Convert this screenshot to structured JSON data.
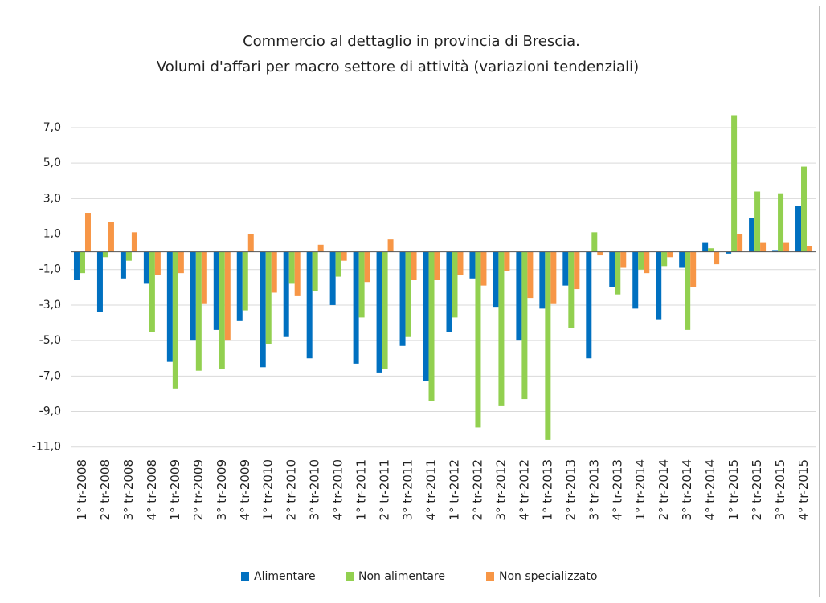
{
  "chart_data": {
    "type": "bar",
    "title": "Commercio al dettaglio in provincia di Brescia.",
    "subtitle": "Volumi d'affari  per macro settore di attività (variazioni tendenziali)",
    "categories": [
      "1° tr-2008",
      "2° tr-2008",
      "3° tr-2008",
      "4° tr-2008",
      "1° tr-2009",
      "2° tr-2009",
      "3° tr-2009",
      "4° tr-2009",
      "1° tr-2010",
      "2° tr-2010",
      "3° tr-2010",
      "4° tr-2010",
      "1° tr-2011",
      "2° tr-2011",
      "3° tr-2011",
      "4° tr-2011",
      "1° tr-2012",
      "2° tr-2012",
      "3° tr-2012",
      "4° tr-2012",
      "1° tr-2013",
      "2° tr-2013",
      "3° tr-2013",
      "4° tr-2013",
      "1° tr-2014",
      "2° tr-2014",
      "3° tr-2014",
      "4° tr-2014",
      "1° tr-2015",
      "2° tr-2015",
      "3° tr-2015",
      "4° tr-2015"
    ],
    "series": [
      {
        "name": "Alimentare",
        "color": "#0070c0",
        "values": [
          -1.6,
          -3.4,
          -1.5,
          -1.8,
          -6.2,
          -5.0,
          -4.4,
          -3.9,
          -6.5,
          -4.8,
          -6.0,
          -3.0,
          -6.3,
          -6.8,
          -5.3,
          -7.3,
          -4.5,
          -1.5,
          -3.1,
          -5.0,
          -3.2,
          -1.9,
          -6.0,
          -2.0,
          -3.2,
          -3.8,
          -0.9,
          0.5,
          -0.1,
          1.9,
          0.1,
          2.6
        ]
      },
      {
        "name": "Non alimentare",
        "color": "#92d050",
        "values": [
          -1.2,
          -0.3,
          -0.5,
          -4.5,
          -7.7,
          -6.7,
          -6.6,
          -3.3,
          -5.2,
          -1.8,
          -2.2,
          -1.4,
          -3.7,
          -6.6,
          -4.8,
          -8.4,
          -3.7,
          -9.9,
          -8.7,
          -8.3,
          -10.6,
          -4.3,
          1.1,
          -2.4,
          -1.0,
          -0.8,
          -4.4,
          0.2,
          7.7,
          3.4,
          3.3,
          4.8
        ]
      },
      {
        "name": "Non specializzato",
        "color": "#f79646",
        "values": [
          2.2,
          1.7,
          1.1,
          -1.3,
          -1.2,
          -2.9,
          -5.0,
          1.0,
          -2.3,
          -2.5,
          0.4,
          -0.5,
          -1.7,
          0.7,
          -1.6,
          -1.6,
          -1.3,
          -1.9,
          -1.1,
          -2.6,
          -2.9,
          -2.1,
          -0.2,
          -0.9,
          -1.2,
          -0.3,
          -2.0,
          -0.7,
          1.0,
          0.5,
          0.5,
          0.3
        ]
      }
    ],
    "ylim": [
      -11.6,
      8.4
    ],
    "yticks": [
      {
        "value": 7,
        "label": "7,0"
      },
      {
        "value": 5,
        "label": "5,0"
      },
      {
        "value": 3,
        "label": "3,0"
      },
      {
        "value": 1,
        "label": "1,0"
      },
      {
        "value": -1,
        "label": "-1,0"
      },
      {
        "value": -3,
        "label": "-3,0"
      },
      {
        "value": -5,
        "label": "-5,0"
      },
      {
        "value": -7,
        "label": "-7,0"
      },
      {
        "value": -9,
        "label": "-9,0"
      },
      {
        "value": -11,
        "label": "-11,0"
      }
    ],
    "grid": true,
    "legend": "bottom"
  }
}
